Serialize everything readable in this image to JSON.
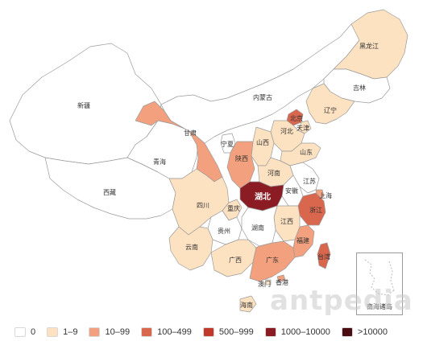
{
  "colors": {
    "bin0": "#ffffff",
    "bin1": "#fde2c2",
    "bin2": "#f2a07e",
    "bin3": "#d9674e",
    "bin4": "#c0392b",
    "bin5": "#8b1c24",
    "bin6": "#4a0d12",
    "stroke": "#9a9a9a"
  },
  "legend": [
    {
      "label": "0",
      "color": "#ffffff"
    },
    {
      "label": "1–9",
      "color": "#fde2c2"
    },
    {
      "label": "10–99",
      "color": "#f2a07e"
    },
    {
      "label": "100–499",
      "color": "#d9674e"
    },
    {
      "label": "500–999",
      "color": "#c0392b"
    },
    {
      "label": "1000–10000",
      "color": "#8b1c24"
    },
    {
      "label": ">10000",
      "color": "#4a0d12"
    }
  ],
  "provinces": [
    {
      "name": "新疆",
      "bin": "0"
    },
    {
      "name": "西藏",
      "bin": "0"
    },
    {
      "name": "青海",
      "bin": "0"
    },
    {
      "name": "甘肃",
      "bin": "10–99"
    },
    {
      "name": "内蒙古",
      "bin": "0"
    },
    {
      "name": "黑龙江",
      "bin": "1–9"
    },
    {
      "name": "吉林",
      "bin": "0"
    },
    {
      "name": "辽宁",
      "bin": "1–9"
    },
    {
      "name": "北京",
      "bin": "100–499"
    },
    {
      "name": "天津",
      "bin": "1–9"
    },
    {
      "name": "河北",
      "bin": "1–9"
    },
    {
      "name": "山西",
      "bin": "1–9"
    },
    {
      "name": "宁夏",
      "bin": "0"
    },
    {
      "name": "陕西",
      "bin": "10–99"
    },
    {
      "name": "山东",
      "bin": "1–9"
    },
    {
      "name": "河南",
      "bin": "1–9"
    },
    {
      "name": "江苏",
      "bin": "0"
    },
    {
      "name": "安徽",
      "bin": "0"
    },
    {
      "name": "上海",
      "bin": "10–99"
    },
    {
      "name": "湖北",
      "bin": "1000–10000"
    },
    {
      "name": "四川",
      "bin": "1–9"
    },
    {
      "name": "重庆",
      "bin": "1–9"
    },
    {
      "name": "浙江",
      "bin": "100–499"
    },
    {
      "name": "江西",
      "bin": "1–9"
    },
    {
      "name": "湖南",
      "bin": "0"
    },
    {
      "name": "贵州",
      "bin": "0"
    },
    {
      "name": "云南",
      "bin": "1–9"
    },
    {
      "name": "广西",
      "bin": "1–9"
    },
    {
      "name": "广东",
      "bin": "10–99"
    },
    {
      "name": "福建",
      "bin": "10–99"
    },
    {
      "name": "台湾",
      "bin": "100–499"
    },
    {
      "name": "香港",
      "bin": "10–99"
    },
    {
      "name": "澳门",
      "bin": "1–9"
    },
    {
      "name": "海南",
      "bin": "1–9"
    }
  ],
  "inset_label": "南海诸岛",
  "watermark": "antpedia"
}
